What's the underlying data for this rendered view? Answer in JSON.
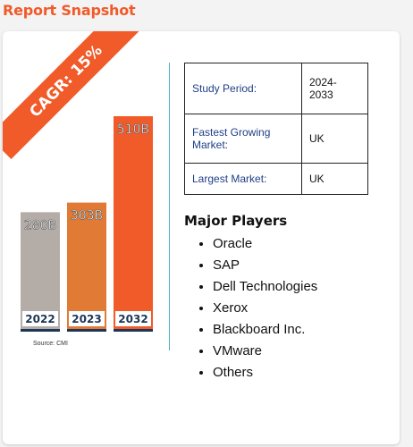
{
  "heading": "Report Snapshot",
  "cagr_badge": "CAGR: 15%",
  "chart_data": {
    "type": "bar",
    "categories": [
      "2022",
      "2023",
      "2032"
    ],
    "values": [
      280,
      303,
      510
    ],
    "value_labels": [
      "280B",
      "303B",
      "510B"
    ],
    "colors": [
      "#b3aca7",
      "#e07a35",
      "#f15a29"
    ],
    "title": "",
    "xlabel": "",
    "ylabel": "",
    "ylim": [
      0,
      510
    ],
    "grid": false
  },
  "source": "Source: CMI",
  "study_table": [
    {
      "key": "Study Period:",
      "value": "2024-\n2033"
    },
    {
      "key": "Fastest Growing\nMarket:",
      "value": "UK"
    },
    {
      "key": "Largest Market:",
      "value": "UK"
    }
  ],
  "major_players": {
    "title": "Major Players",
    "items": [
      "Oracle",
      "SAP",
      "Dell Technologies",
      "Xerox",
      "Blackboard Inc.",
      "VMware",
      "Others"
    ]
  }
}
